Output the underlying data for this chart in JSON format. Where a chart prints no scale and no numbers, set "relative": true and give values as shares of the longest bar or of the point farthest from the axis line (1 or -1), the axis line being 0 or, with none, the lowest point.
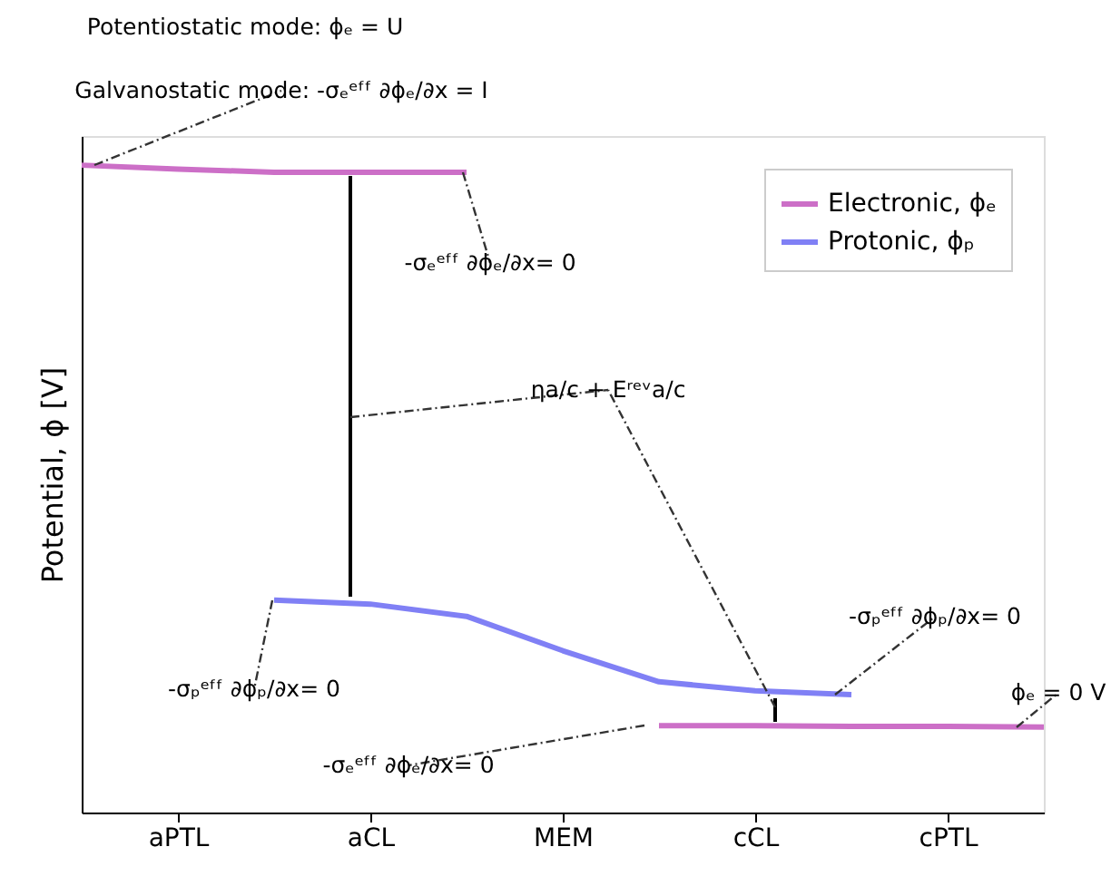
{
  "chart_data": {
    "type": "line",
    "relative": true,
    "ylabel": "Potential, ϕ [V]",
    "categories": [
      null,
      "aPTL",
      null,
      "aCL",
      null,
      "MEM",
      null,
      "cCL",
      null,
      "cPTL",
      null
    ],
    "series": [
      {
        "name": "Electronic, ϕₑ",
        "color": "#cc6fc7",
        "values": [
          1,
          0.994,
          0.989,
          0.989,
          0.989,
          null,
          0.134,
          0.134,
          0.133,
          0.133,
          0.132
        ]
      },
      {
        "name": "Protonic, ϕₚ",
        "color": "#8080f5",
        "values": [
          null,
          null,
          0.328,
          0.322,
          0.303,
          0.25,
          0.202,
          0.188,
          0.182,
          null,
          null
        ]
      }
    ],
    "annotations": [
      "Potentiostatic mode: ϕₑ = U",
      "Galvanostatic mode: -σₑᵉᶠᶠ ∂ϕₑ/∂x = I",
      "-σₑᵉᶠᶠ ∂ϕₑ/∂x= 0",
      "ηa/c + Eʳᵉᵛa/c",
      "-σₚᵉᶠᶠ ∂ϕₚ/∂x= 0",
      "-σₚᵉᶠᶠ ∂ϕₚ/∂x= 0",
      "-σₑᵉᶠᶠ ∂ϕₑ/∂x= 0",
      "ϕₑ = 0 V"
    ],
    "legend": "top right",
    "grid": false,
    "marker": "none",
    "line_style": "solid"
  }
}
